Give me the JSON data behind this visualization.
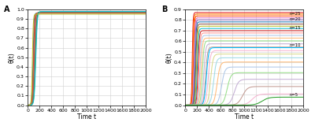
{
  "panel_A": {
    "label": "A",
    "curves": [
      {
        "ss": 0.96,
        "t0": 90,
        "k": 0.12,
        "color": "#1f77b4"
      },
      {
        "ss": 0.963,
        "t0": 100,
        "k": 0.11,
        "color": "#d62728"
      },
      {
        "ss": 0.966,
        "t0": 108,
        "k": 0.1,
        "color": "#ff7f0e"
      },
      {
        "ss": 0.969,
        "t0": 115,
        "k": 0.095,
        "color": "#8c564b"
      },
      {
        "ss": 0.972,
        "t0": 122,
        "k": 0.09,
        "color": "#9467bd"
      },
      {
        "ss": 0.975,
        "t0": 130,
        "k": 0.085,
        "color": "#2ca02c"
      },
      {
        "ss": 0.978,
        "t0": 138,
        "k": 0.08,
        "color": "#17becf"
      },
      {
        "ss": 0.95,
        "t0": 80,
        "k": 0.13,
        "color": "#bcbd22"
      }
    ],
    "xlabel": "Time t",
    "ylabel": "θ(t)",
    "xlim": [
      0,
      2000
    ],
    "ylim": [
      0,
      1.0
    ],
    "xticks": [
      0,
      200,
      400,
      600,
      800,
      1000,
      1200,
      1400,
      1600,
      1800,
      2000
    ],
    "yticks": [
      0.0,
      0.1,
      0.2,
      0.3,
      0.4,
      0.5,
      0.6,
      0.7,
      0.8,
      0.9,
      1.0
    ]
  },
  "panel_B": {
    "label": "B",
    "curves": [
      {
        "ss": 0.87,
        "t0": 120,
        "k": 0.14,
        "color": "#e41a1c",
        "label": null
      },
      {
        "ss": 0.855,
        "t0": 130,
        "k": 0.13,
        "color": "#ff7f00",
        "label": null
      },
      {
        "ss": 0.838,
        "t0": 140,
        "k": 0.125,
        "color": "#ff4500",
        "label": "n=25"
      },
      {
        "ss": 0.82,
        "t0": 150,
        "k": 0.12,
        "color": "#e377c2",
        "label": null
      },
      {
        "ss": 0.802,
        "t0": 160,
        "k": 0.115,
        "color": "#9467bd",
        "label": null
      },
      {
        "ss": 0.782,
        "t0": 170,
        "k": 0.11,
        "color": "#1f77b4",
        "label": "n=20"
      },
      {
        "ss": 0.762,
        "t0": 180,
        "k": 0.105,
        "color": "#8c564b",
        "label": null
      },
      {
        "ss": 0.742,
        "t0": 192,
        "k": 0.1,
        "color": "#bcbd22",
        "label": null
      },
      {
        "ss": 0.72,
        "t0": 205,
        "k": 0.095,
        "color": "#17becf",
        "label": null
      },
      {
        "ss": 0.7,
        "t0": 218,
        "k": 0.09,
        "color": "#d62728",
        "label": "n=15"
      },
      {
        "ss": 0.678,
        "t0": 232,
        "k": 0.085,
        "color": "#ff9896",
        "label": null
      },
      {
        "ss": 0.655,
        "t0": 248,
        "k": 0.08,
        "color": "#aec7e8",
        "label": null
      },
      {
        "ss": 0.63,
        "t0": 268,
        "k": 0.075,
        "color": "#ffbb78",
        "label": null
      },
      {
        "ss": 0.604,
        "t0": 290,
        "k": 0.07,
        "color": "#98df8a",
        "label": null
      },
      {
        "ss": 0.576,
        "t0": 316,
        "k": 0.065,
        "color": "#c5b0d5",
        "label": null
      },
      {
        "ss": 0.546,
        "t0": 345,
        "k": 0.06,
        "color": "#c49c94",
        "label": null
      },
      {
        "ss": 0.54,
        "t0": 360,
        "k": 0.055,
        "color": "#00bfff",
        "label": "n=10"
      },
      {
        "ss": 0.512,
        "t0": 390,
        "k": 0.052,
        "color": "#f7b6d2",
        "label": null
      },
      {
        "ss": 0.48,
        "t0": 430,
        "k": 0.048,
        "color": "#dbdb8d",
        "label": null
      },
      {
        "ss": 0.445,
        "t0": 480,
        "k": 0.044,
        "color": "#9edae5",
        "label": null
      },
      {
        "ss": 0.405,
        "t0": 540,
        "k": 0.04,
        "color": "#ffbb78",
        "label": null
      },
      {
        "ss": 0.358,
        "t0": 615,
        "k": 0.036,
        "color": "#aec7e8",
        "label": null
      },
      {
        "ss": 0.305,
        "t0": 710,
        "k": 0.032,
        "color": "#98df8a",
        "label": null
      },
      {
        "ss": 0.243,
        "t0": 830,
        "k": 0.028,
        "color": "#c5b0d5",
        "label": null
      },
      {
        "ss": 0.175,
        "t0": 970,
        "k": 0.024,
        "color": "#c49c94",
        "label": null
      },
      {
        "ss": 0.105,
        "t0": 1130,
        "k": 0.02,
        "color": "#f7b6d2",
        "label": null
      },
      {
        "ss": 0.075,
        "t0": 1300,
        "k": 0.018,
        "color": "#2ca02c",
        "label": "n=5"
      }
    ],
    "xlabel": "Time t",
    "ylabel": "θ(t)",
    "xlim": [
      0,
      2000
    ],
    "ylim": [
      0,
      0.9
    ],
    "xticks": [
      0,
      200,
      400,
      600,
      800,
      1000,
      1200,
      1400,
      1600,
      1800,
      2000
    ],
    "yticks": [
      0.0,
      0.1,
      0.2,
      0.3,
      0.4,
      0.5,
      0.6,
      0.7,
      0.8,
      0.9
    ]
  },
  "background_color": "#ffffff",
  "grid_color": "#d0d0d0"
}
